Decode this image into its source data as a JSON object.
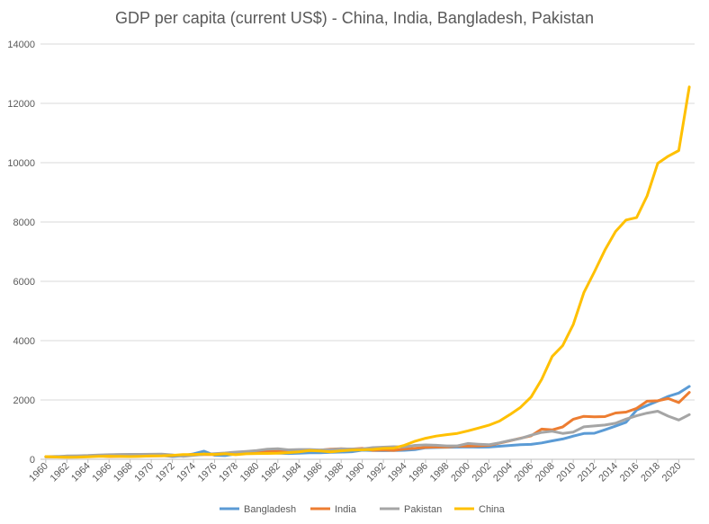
{
  "chart_data": {
    "type": "line",
    "title": "GDP per capita (current US$) - China, India, Bangladesh, Pakistan",
    "xlabel": "",
    "ylabel": "",
    "ylim": [
      0,
      14000
    ],
    "yticks": [
      0,
      2000,
      4000,
      6000,
      8000,
      10000,
      12000,
      14000
    ],
    "x": [
      1960,
      1961,
      1962,
      1963,
      1964,
      1965,
      1966,
      1967,
      1968,
      1969,
      1970,
      1971,
      1972,
      1973,
      1974,
      1975,
      1976,
      1977,
      1978,
      1979,
      1980,
      1981,
      1982,
      1983,
      1984,
      1985,
      1986,
      1987,
      1988,
      1989,
      1990,
      1991,
      1992,
      1993,
      1994,
      1995,
      1996,
      1997,
      1998,
      1999,
      2000,
      2001,
      2002,
      2003,
      2004,
      2005,
      2006,
      2007,
      2008,
      2009,
      2010,
      2011,
      2012,
      2013,
      2014,
      2015,
      2016,
      2017,
      2018,
      2019,
      2020,
      2021
    ],
    "xtick_labels": [
      "1960",
      "1962",
      "1964",
      "1966",
      "1968",
      "1970",
      "1972",
      "1974",
      "1976",
      "1978",
      "1980",
      "1982",
      "1984",
      "1986",
      "1988",
      "1990",
      "1992",
      "1994",
      "1996",
      "1998",
      "2000",
      "2002",
      "2004",
      "2006",
      "2008",
      "2010",
      "2012",
      "2014",
      "2016",
      "2018",
      "2020"
    ],
    "grid": "horizontal",
    "legend_position": "bottom",
    "series": [
      {
        "name": "Bangladesh",
        "color": "#5B9BD5",
        "values": [
          89,
          93,
          96,
          99,
          103,
          111,
          120,
          123,
          130,
          136,
          137,
          128,
          94,
          118,
          181,
          273,
          135,
          125,
          181,
          201,
          221,
          230,
          208,
          194,
          207,
          218,
          219,
          233,
          242,
          256,
          306,
          296,
          291,
          295,
          303,
          325,
          388,
          396,
          405,
          409,
          418,
          410,
          411,
          440,
          466,
          495,
          503,
          551,
          620,
          686,
          781,
          869,
          880,
          994,
          1119,
          1248,
          1659,
          1816,
          1964,
          2122,
          2234,
          2458
        ]
      },
      {
        "name": "India",
        "color": "#ED7D31",
        "values": [
          82,
          85,
          89,
          101,
          115,
          119,
          90,
          96,
          99,
          107,
          112,
          118,
          122,
          143,
          163,
          158,
          161,
          186,
          206,
          224,
          266,
          270,
          274,
          291,
          276,
          296,
          310,
          340,
          354,
          346,
          368,
          303,
          316,
          301,
          346,
          373,
          399,
          415,
          413,
          441,
          443,
          451,
          470,
          546,
          624,
          710,
          792,
          1018,
          991,
          1090,
          1351,
          1449,
          1434,
          1438,
          1560,
          1590,
          1714,
          1958,
          1974,
          2050,
          1913,
          2256
        ]
      },
      {
        "name": "Pakistan",
        "color": "#A5A5A5",
        "values": [
          82,
          86,
          111,
          118,
          128,
          145,
          154,
          164,
          168,
          166,
          170,
          173,
          150,
          100,
          133,
          166,
          190,
          213,
          241,
          267,
          296,
          338,
          355,
          319,
          330,
          331,
          315,
          323,
          351,
          346,
          347,
          395,
          408,
          424,
          418,
          471,
          485,
          473,
          450,
          451,
          533,
          509,
          492,
          556,
          633,
          703,
          812,
          906,
          946,
          873,
          919,
          1094,
          1124,
          1155,
          1215,
          1356,
          1468,
          1559,
          1620,
          1454,
          1323,
          1505
        ]
      },
      {
        "name": "China",
        "color": "#FFC000",
        "values": [
          90,
          76,
          70,
          74,
          85,
          98,
          104,
          97,
          91,
          100,
          113,
          119,
          132,
          157,
          160,
          178,
          165,
          185,
          156,
          184,
          195,
          197,
          203,
          225,
          251,
          294,
          282,
          252,
          284,
          311,
          318,
          333,
          366,
          377,
          473,
          610,
          709,
          782,
          829,
          873,
          959,
          1053,
          1149,
          1289,
          1509,
          1753,
          2099,
          2694,
          3468,
          3832,
          4550,
          5618,
          6317,
          7051,
          7679,
          8067,
          8147,
          8879,
          9977,
          10217,
          10409,
          12556
        ]
      }
    ]
  }
}
